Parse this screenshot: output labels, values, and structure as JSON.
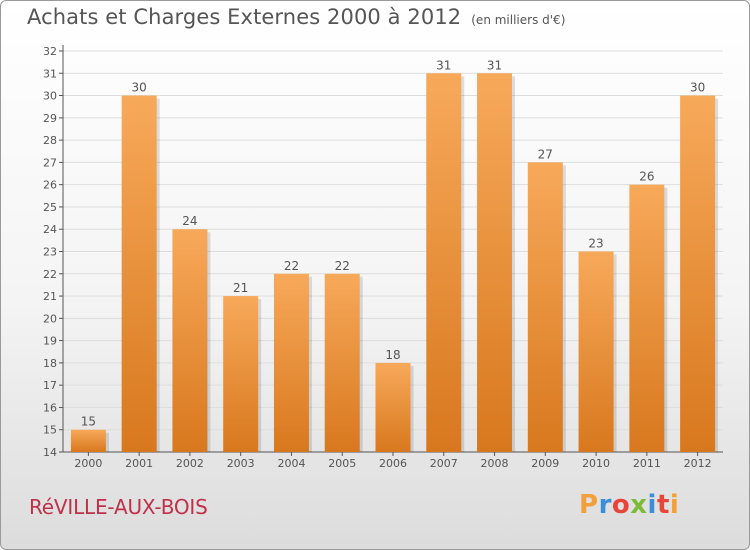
{
  "header": {
    "title": "Achats et Charges Externes 2000 à 2012",
    "subtitle": "(en milliers d'€)"
  },
  "footer": {
    "place_name": "RéVILLE-AUX-BOIS",
    "logo_text": "Proxiti"
  },
  "colors": {
    "bar_top": "#f7a95a",
    "bar_bottom": "#d8781e",
    "grid": "#dddddd",
    "text": "#555555",
    "place": "#c0304a",
    "logo_letters": [
      "#f2a03a",
      "#3a8fd6",
      "#e8443a",
      "#7dbb3a",
      "#3a8fd6",
      "#e8443a",
      "#f2a03a"
    ]
  },
  "chart_data": {
    "type": "bar",
    "title": "Achats et Charges Externes 2000 à 2012",
    "subtitle": "(en milliers d'€)",
    "categories": [
      "2000",
      "2001",
      "2002",
      "2003",
      "2004",
      "2005",
      "2006",
      "2007",
      "2008",
      "2009",
      "2010",
      "2011",
      "2012"
    ],
    "values": [
      15,
      30,
      24,
      21,
      22,
      22,
      18,
      31,
      31,
      27,
      23,
      26,
      30
    ],
    "ylim": [
      14,
      32
    ],
    "yticks": [
      14,
      15,
      16,
      17,
      18,
      19,
      20,
      21,
      22,
      23,
      24,
      25,
      26,
      27,
      28,
      29,
      30,
      31,
      32
    ],
    "grid": true,
    "data_labels": true
  }
}
